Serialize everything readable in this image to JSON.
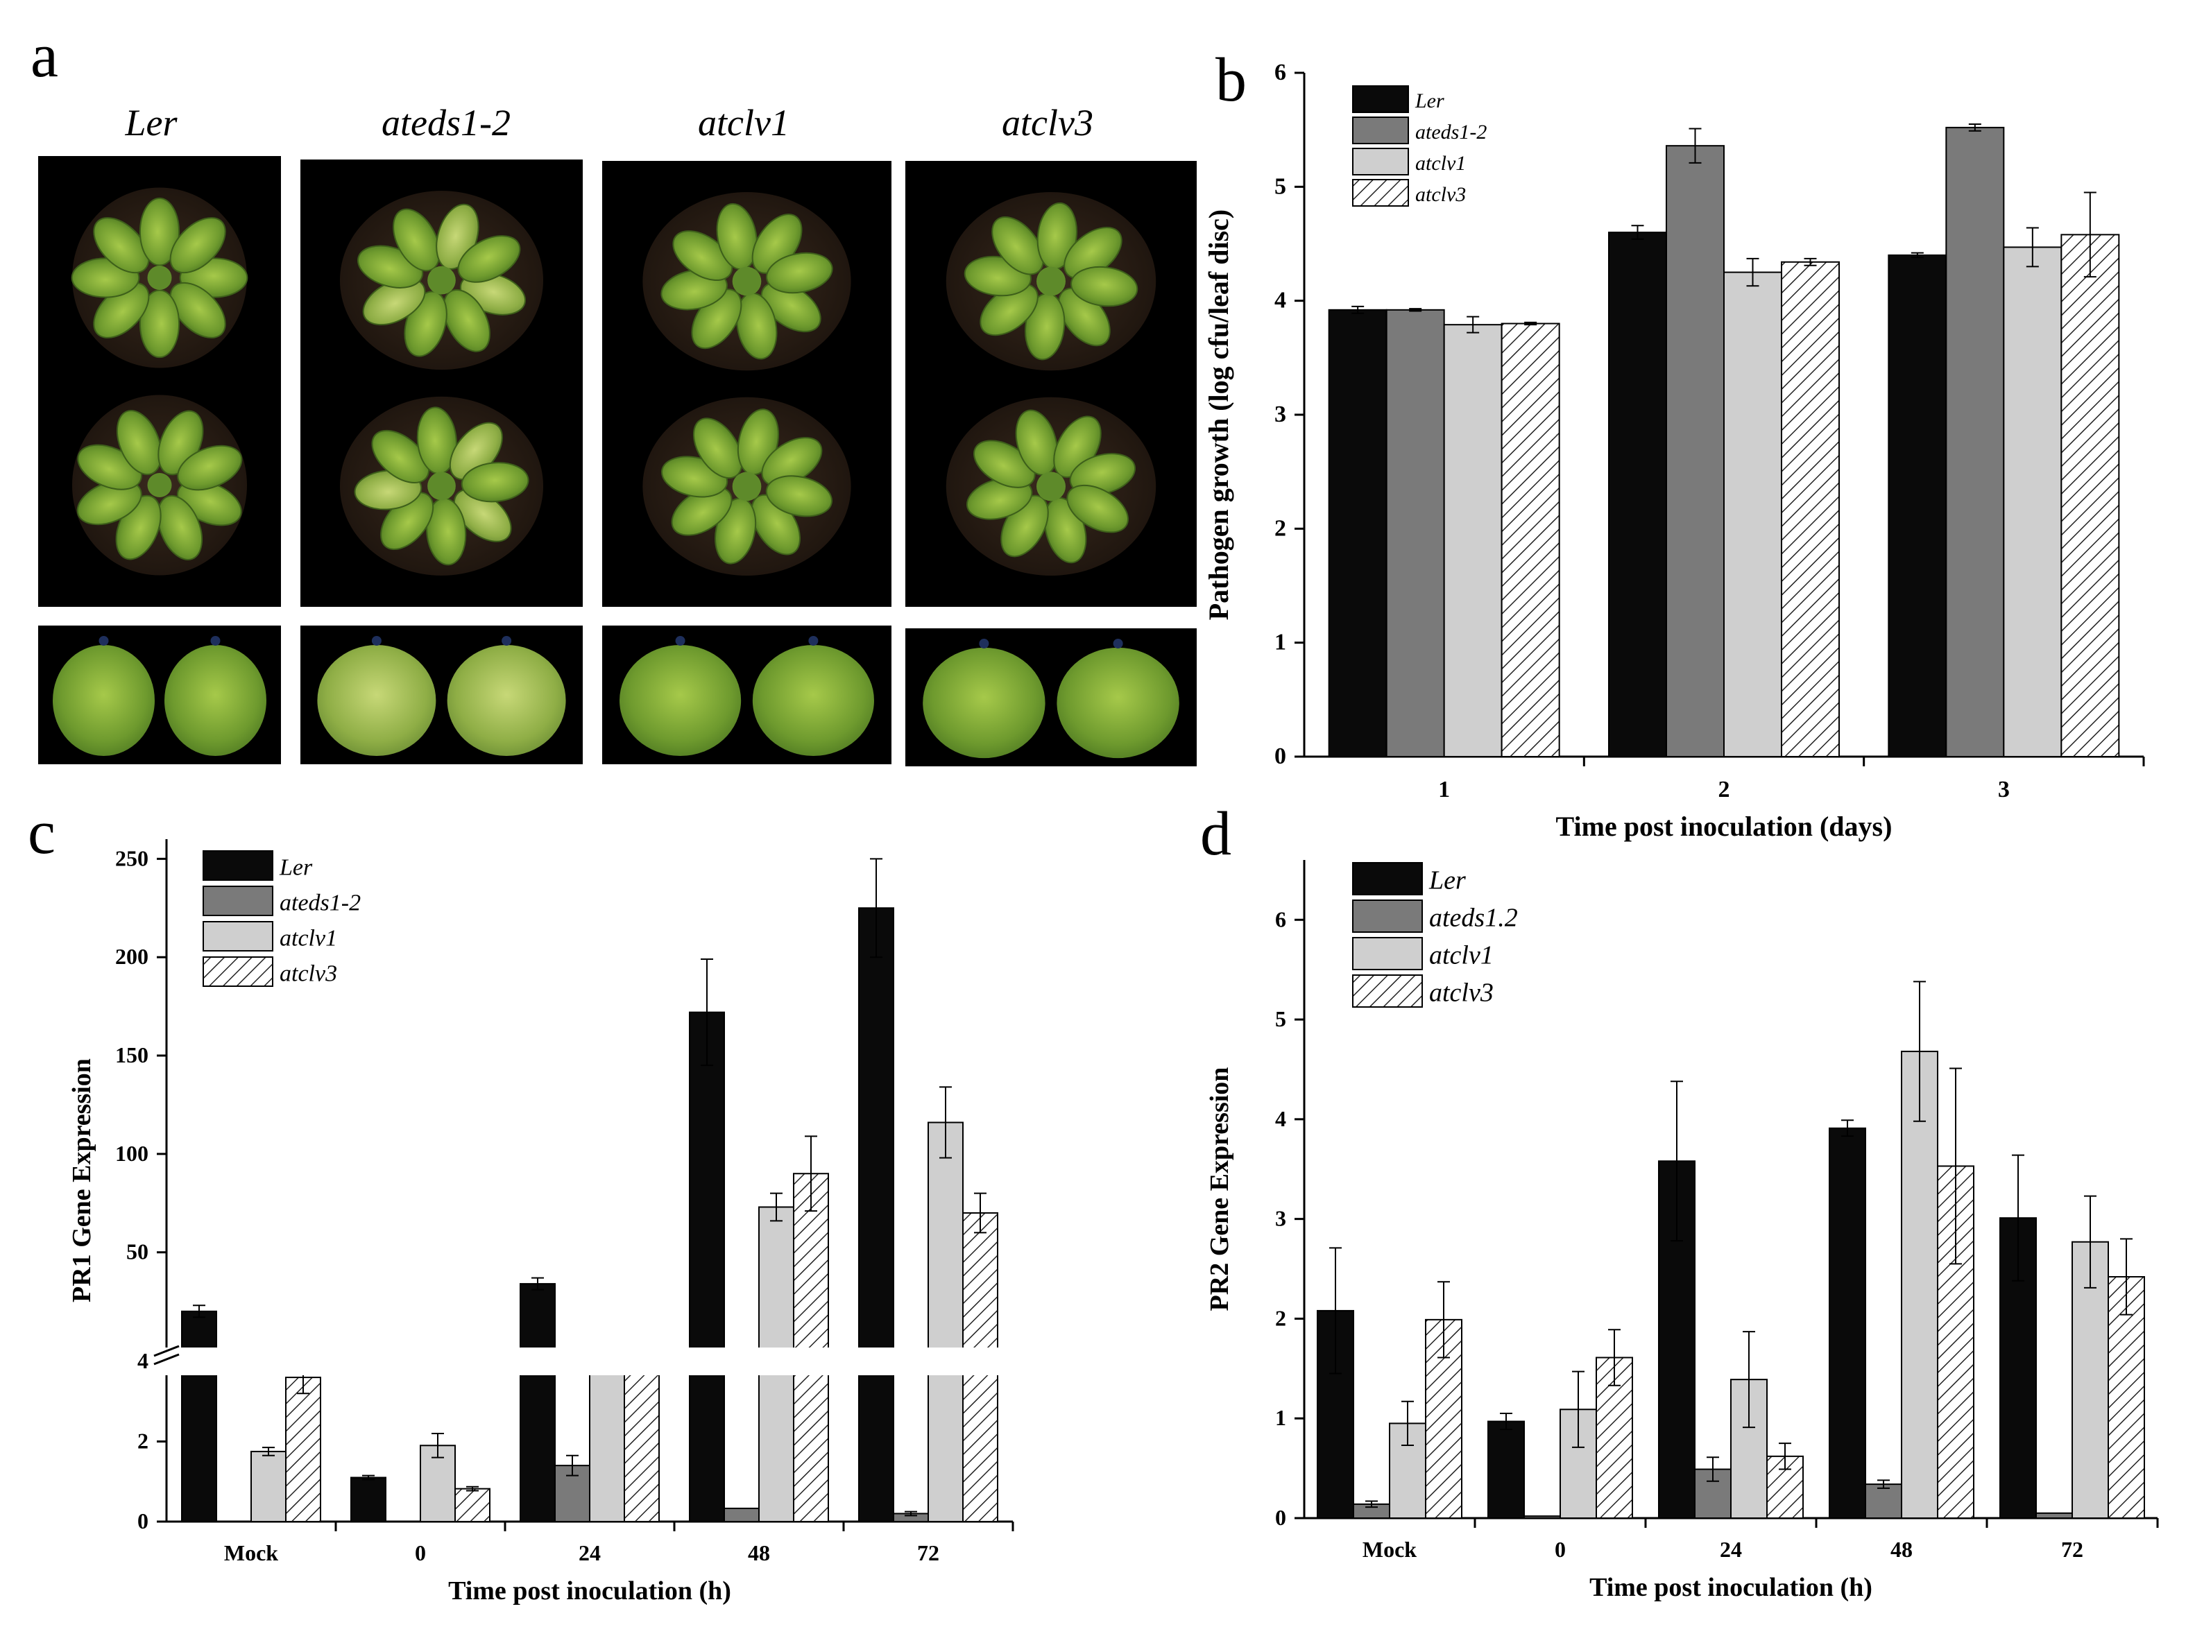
{
  "panel_a": {
    "panel_letter": "a",
    "genotypes": [
      "Ler",
      "ateds1-2",
      "atclv1",
      "atclv3"
    ]
  },
  "chart_data": [
    {
      "panel": "b",
      "type": "bar",
      "title": "",
      "xlabel": "Time post inoculation (days)",
      "ylabel": "Pathogen growth (log cfu/leaf disc)",
      "categories": [
        "1",
        "2",
        "3"
      ],
      "ylim": [
        0,
        6
      ],
      "yticks": [
        0,
        1,
        2,
        3,
        4,
        5,
        6
      ],
      "series": [
        {
          "name": "Ler",
          "values": [
            3.92,
            4.6,
            4.4
          ],
          "errors": [
            0.03,
            0.06,
            0.02
          ]
        },
        {
          "name": "ateds1-2",
          "values": [
            3.92,
            5.36,
            5.52
          ],
          "errors": [
            0.01,
            0.15,
            0.03
          ]
        },
        {
          "name": "atclv1",
          "values": [
            3.79,
            4.25,
            4.47
          ],
          "errors": [
            0.07,
            0.12,
            0.17
          ]
        },
        {
          "name": "atclv3",
          "values": [
            3.8,
            4.34,
            4.58
          ],
          "errors": [
            0.01,
            0.03,
            0.37
          ]
        }
      ],
      "legend_position": "top-left",
      "grid": false
    },
    {
      "panel": "c",
      "type": "bar",
      "title": "",
      "xlabel": "Time post inoculation (h)",
      "ylabel": "PR1 Gene Expression",
      "categories": [
        "Mock",
        "0",
        "24",
        "48",
        "72"
      ],
      "axis_break": {
        "lower_range": [
          0,
          4
        ],
        "upper_range": [
          15,
          260
        ],
        "upper_ticks": [
          50,
          100,
          150,
          200,
          250
        ],
        "lower_ticks": [
          0,
          2,
          4
        ]
      },
      "series": [
        {
          "name": "Ler",
          "values": [
            20,
            1.1,
            34,
            172,
            225
          ],
          "errors": [
            3,
            0.05,
            3,
            27,
            25
          ]
        },
        {
          "name": "ateds1-2",
          "values": [
            0,
            0,
            1.4,
            0.33,
            0.2
          ],
          "errors": [
            0,
            0,
            0.25,
            0,
            0.05
          ]
        },
        {
          "name": "atclv1",
          "values": [
            1.75,
            1.9,
            5.0,
            73,
            116
          ],
          "errors": [
            0.1,
            0.3,
            0,
            7,
            18
          ]
        },
        {
          "name": "atclv3",
          "values": [
            3.6,
            0.82,
            5.0,
            90,
            70
          ],
          "errors": [
            0.4,
            0.05,
            0,
            19,
            10
          ]
        }
      ],
      "legend_position": "top-left",
      "grid": false
    },
    {
      "panel": "d",
      "type": "bar",
      "title": "",
      "xlabel": "Time post inoculation (h)",
      "ylabel": "PR2 Gene Expression",
      "categories": [
        "Mock",
        "0",
        "24",
        "48",
        "72"
      ],
      "ylim": [
        0,
        6.6
      ],
      "yticks": [
        0,
        1,
        2,
        3,
        4,
        5,
        6
      ],
      "series": [
        {
          "name": "Ler",
          "values": [
            2.08,
            0.97,
            3.58,
            3.91,
            3.01
          ],
          "errors": [
            0.63,
            0.08,
            0.8,
            0.08,
            0.63
          ]
        },
        {
          "name": "ateds1.2",
          "values": [
            0.14,
            0.02,
            0.49,
            0.34,
            0.05
          ],
          "errors": [
            0.03,
            0,
            0.12,
            0.04,
            0
          ]
        },
        {
          "name": "atclv1",
          "values": [
            0.95,
            1.09,
            1.39,
            4.68,
            2.77
          ],
          "errors": [
            0.22,
            0.38,
            0.48,
            0.7,
            0.46
          ]
        },
        {
          "name": "atclv3",
          "values": [
            1.99,
            1.61,
            0.62,
            3.53,
            2.42
          ],
          "errors": [
            0.38,
            0.28,
            0.13,
            0.98,
            0.38
          ]
        }
      ],
      "legend_position": "top-left",
      "grid": false
    }
  ]
}
